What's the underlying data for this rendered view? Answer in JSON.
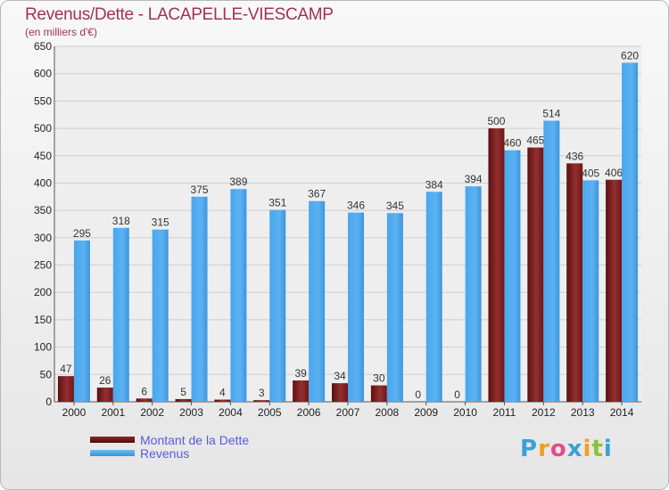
{
  "chart_data": {
    "type": "bar",
    "title": "Revenus/Dette - LACAPELLE-VIESCAMP",
    "subtitle": "(en milliers d'€)",
    "categories": [
      "2000",
      "2001",
      "2002",
      "2003",
      "2004",
      "2005",
      "2006",
      "2007",
      "2008",
      "2009",
      "2010",
      "2011",
      "2012",
      "2013",
      "2014"
    ],
    "series": [
      {
        "name": "Montant de la Dette",
        "color": "#7a1a1a",
        "values": [
          47,
          26,
          6,
          5,
          4,
          3,
          39,
          34,
          30,
          0,
          0,
          500,
          465,
          436,
          406
        ]
      },
      {
        "name": "Revenus",
        "color": "#4aa3e8",
        "values": [
          295,
          318,
          315,
          375,
          389,
          351,
          367,
          346,
          345,
          384,
          394,
          460,
          514,
          405,
          620
        ]
      }
    ],
    "ylim": [
      0,
      650
    ],
    "ytick_step": 50,
    "grid": true,
    "legend_position": "bottom-left"
  },
  "logo": {
    "letters": [
      "P",
      "r",
      "o",
      "x",
      "i",
      "t",
      "i"
    ],
    "colors": [
      "#3aa0d8",
      "#f0a020",
      "#e84a8a",
      "#3aa0d8",
      "#f0a020",
      "#8ac23a",
      "#3aa0d8"
    ]
  }
}
